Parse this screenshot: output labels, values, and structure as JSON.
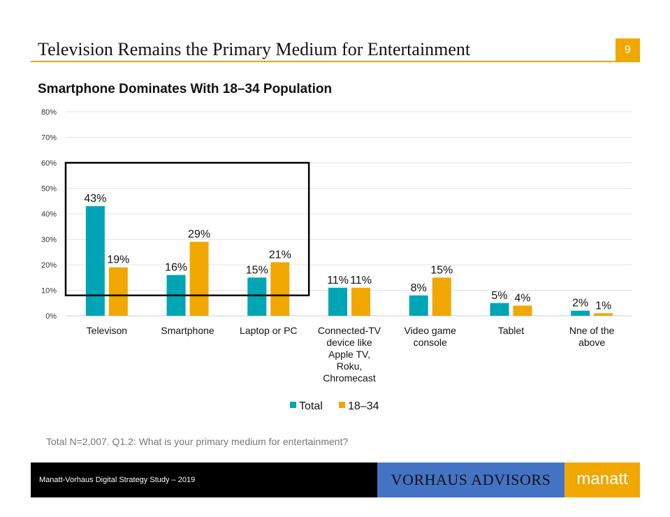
{
  "header": {
    "title": "Television Remains the Primary Medium for Entertainment",
    "page_number": "9"
  },
  "chart_data": {
    "type": "bar",
    "title": "Smartphone Dominates With 18–34 Population",
    "categories": [
      "Televison",
      "Smartphone",
      "Laptop or PC",
      "Connected-TV device like Apple TV, Roku, Chromecast",
      "Video game console",
      "Tablet",
      "Nne of the above"
    ],
    "category_lines": [
      [
        "Televison"
      ],
      [
        "Smartphone"
      ],
      [
        "Laptop or PC"
      ],
      [
        "Connected-TV",
        "device like",
        "Apple TV,",
        "Roku,",
        "Chromecast"
      ],
      [
        "Video game",
        "console"
      ],
      [
        "Tablet"
      ],
      [
        "Nne of the",
        "above"
      ]
    ],
    "series": [
      {
        "name": "Total",
        "color": "#00a5b5",
        "values": [
          43,
          16,
          15,
          11,
          8,
          5,
          2
        ],
        "labels": [
          "43%",
          "16%",
          "15%",
          "11%",
          "8%",
          "5%",
          "2%"
        ]
      },
      {
        "name": "18–34",
        "color": "#f0a800",
        "values": [
          19,
          29,
          21,
          11,
          15,
          4,
          1
        ],
        "labels": [
          "19%",
          "29%",
          "21%",
          "11%",
          "15%",
          "4%",
          "1%"
        ]
      }
    ],
    "ylim": [
      0,
      80
    ],
    "yticks": [
      "0%",
      "10%",
      "20%",
      "30%",
      "40%",
      "50%",
      "60%",
      "70%",
      "80%"
    ],
    "grid": true,
    "legend": "bottom",
    "highlight_box": {
      "categories": [
        "Televison",
        "Smartphone",
        "Laptop or PC"
      ],
      "ylim": [
        8,
        60
      ]
    }
  },
  "note": "Total N=2,007. Q1.2: What is your primary medium for entertainment?",
  "footer": {
    "study": "Manatt-Vorhaus Digital Strategy Study – 2019",
    "logo_vorhaus": "VORHAUS ADVISORS",
    "logo_manatt": "manatt"
  }
}
